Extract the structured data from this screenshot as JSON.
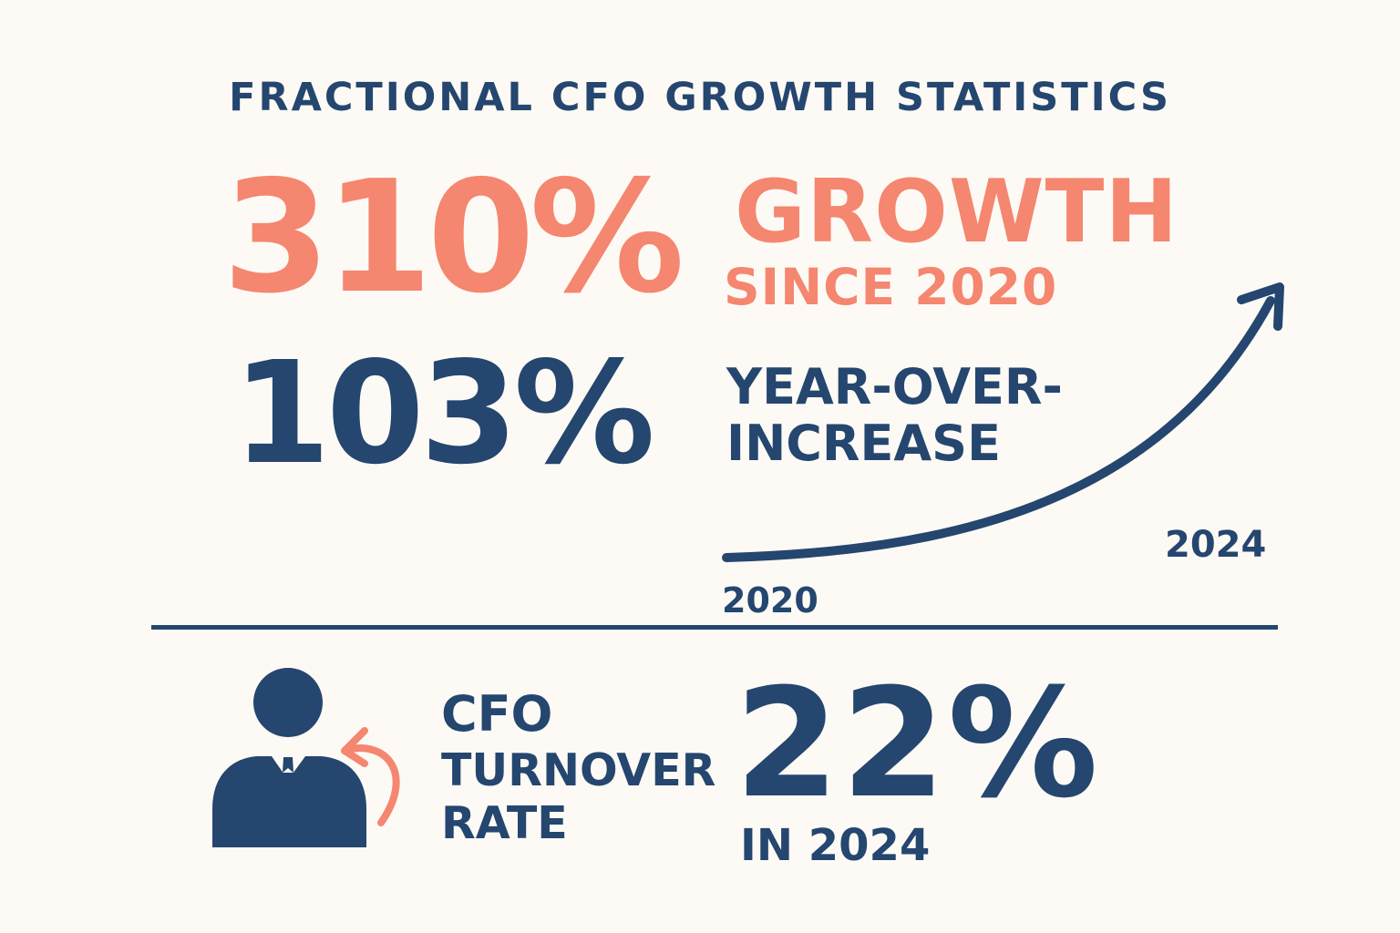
{
  "title": "FRACTIONAL CFO GROWTH STATISTICS",
  "growth": {
    "value": "310%",
    "label_line1": "GROWTH",
    "label_line2": "SINCE 2020"
  },
  "yoy": {
    "value": "103%",
    "label_line1": "YEAR-OVER-",
    "label_line2": "INCREASE"
  },
  "trend": {
    "start_label": "2020",
    "end_label": "2024"
  },
  "turnover": {
    "label_line1": "CFO",
    "label_line2": "TURNOVER",
    "label_line3": "RATE",
    "value": "22%",
    "sub_label": "IN 2024"
  },
  "colors": {
    "navy": "#24466f",
    "coral": "#f5866f",
    "background": "#fdfaf5"
  },
  "icons": {
    "trend": "upward-curved-arrow-icon",
    "person": "business-person-icon",
    "cycle": "return-arrow-icon"
  }
}
